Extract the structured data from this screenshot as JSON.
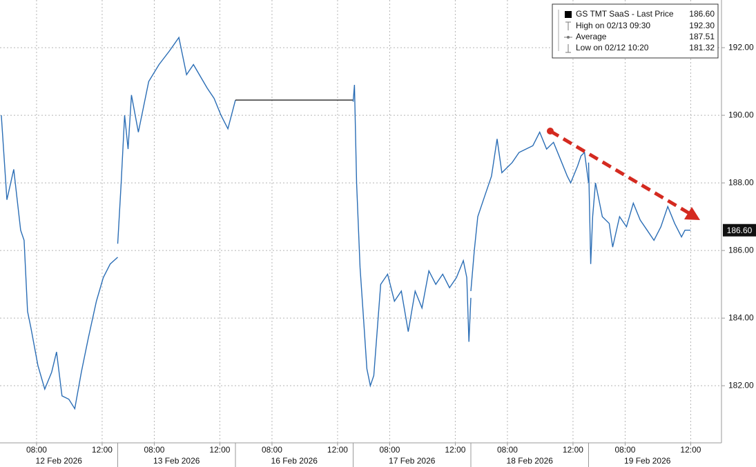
{
  "chart_data": {
    "type": "line",
    "color": "#2a6db5",
    "legend": [
      {
        "label": "GS TMT SaaS - Last Price",
        "value": {
          "value": 186.6,
          "label": "186.60"
        }
      },
      {
        "label": "High on 02/13 09:30",
        "value": {
          "value": 192.3,
          "label": "192.30"
        }
      },
      {
        "label": "Average",
        "value": {
          "value": 187.51,
          "label": "187.51"
        }
      },
      {
        "label": "Low on 02/12 10:20",
        "value": {
          "value": 181.32,
          "label": "181.32"
        }
      }
    ],
    "ylim": [
      180.31,
      193.41
    ],
    "yticks": [
      {
        "value": 182,
        "label": "182.00"
      },
      {
        "value": 184,
        "label": "184.00"
      },
      {
        "value": 186,
        "label": "186.00"
      },
      {
        "value": 188,
        "label": "188.00"
      },
      {
        "value": 190,
        "label": "190.00"
      },
      {
        "value": 192,
        "label": "192.00"
      }
    ],
    "xlim": [
      5.77,
      12.95
    ],
    "xticks": [
      {
        "value": 8,
        "label": "08:00"
      },
      {
        "value": 12,
        "label": "12:00"
      }
    ],
    "grid": true,
    "days": [
      {
        "label": "12 Feb 2026",
        "x": [
          5.85,
          6.19,
          6.61,
          7.03,
          7.24,
          7.45,
          7.66,
          8.08,
          8.5,
          8.92,
          9.22,
          9.55,
          9.97,
          10.33,
          10.73,
          11.15,
          11.65,
          12.07,
          12.49,
          12.95
        ],
        "values": [
          190.0,
          187.5,
          188.4,
          186.6,
          186.3,
          184.2,
          183.7,
          182.6,
          181.9,
          182.4,
          183.0,
          181.7,
          181.6,
          181.32,
          182.4,
          183.4,
          184.5,
          185.2,
          185.6,
          185.8
        ]
      },
      {
        "label": "13 Feb 2026",
        "x": [
          5.77,
          5.98,
          6.19,
          6.4,
          6.61,
          7.03,
          7.66,
          8.29,
          8.92,
          9.5,
          9.97,
          10.39,
          11.23,
          11.65,
          12.07,
          12.49,
          12.95
        ],
        "values": [
          186.2,
          188.0,
          190.0,
          189.0,
          190.6,
          189.5,
          191.0,
          191.5,
          191.9,
          192.3,
          191.2,
          191.5,
          190.8,
          190.5,
          190.0,
          189.6,
          190.45
        ]
      },
      {
        "label": "16 Feb 2026",
        "x": [
          5.77,
          12.95
        ],
        "values": [
          190.45,
          190.45
        ]
      },
      {
        "label": "17 Feb 2026",
        "x": [
          5.77,
          5.85,
          5.98,
          6.19,
          6.4,
          6.61,
          6.82,
          7.03,
          7.45,
          7.87,
          8.29,
          8.71,
          9.13,
          9.55,
          9.97,
          10.39,
          10.81,
          11.23,
          11.65,
          12.07,
          12.49,
          12.7,
          12.83,
          12.95
        ],
        "values": [
          190.4,
          190.9,
          188.0,
          185.5,
          184.0,
          182.5,
          182.0,
          182.3,
          185.0,
          185.3,
          184.5,
          184.8,
          183.6,
          184.8,
          184.3,
          185.4,
          185.0,
          185.3,
          184.9,
          185.2,
          185.7,
          185.2,
          183.3,
          184.6
        ]
      },
      {
        "label": "18 Feb 2026",
        "x": [
          5.77,
          5.98,
          6.19,
          6.61,
          7.03,
          7.37,
          7.66,
          8.29,
          8.71,
          9.13,
          9.55,
          9.97,
          10.39,
          10.81,
          11.23,
          11.65,
          11.86,
          12.28,
          12.49,
          12.7,
          12.95
        ],
        "values": [
          184.8,
          186.0,
          187.0,
          187.6,
          188.2,
          189.3,
          188.3,
          188.6,
          188.9,
          189.0,
          189.1,
          189.5,
          189.0,
          189.2,
          188.7,
          188.2,
          188.0,
          188.5,
          188.8,
          188.9,
          188.0
        ]
      },
      {
        "label": "19 Feb 2026",
        "x": [
          5.77,
          5.9,
          6.02,
          6.19,
          6.4,
          6.61,
          7.03,
          7.24,
          7.66,
          8.08,
          8.5,
          8.92,
          9.34,
          9.76,
          10.18,
          10.6,
          11.02,
          11.44,
          11.65,
          11.99
        ],
        "values": [
          188.6,
          185.6,
          187.0,
          188.0,
          187.5,
          187.0,
          186.8,
          186.1,
          187.0,
          186.7,
          187.4,
          186.9,
          186.6,
          186.3,
          186.7,
          187.3,
          186.8,
          186.4,
          186.6,
          186.6
        ]
      }
    ]
  }
}
